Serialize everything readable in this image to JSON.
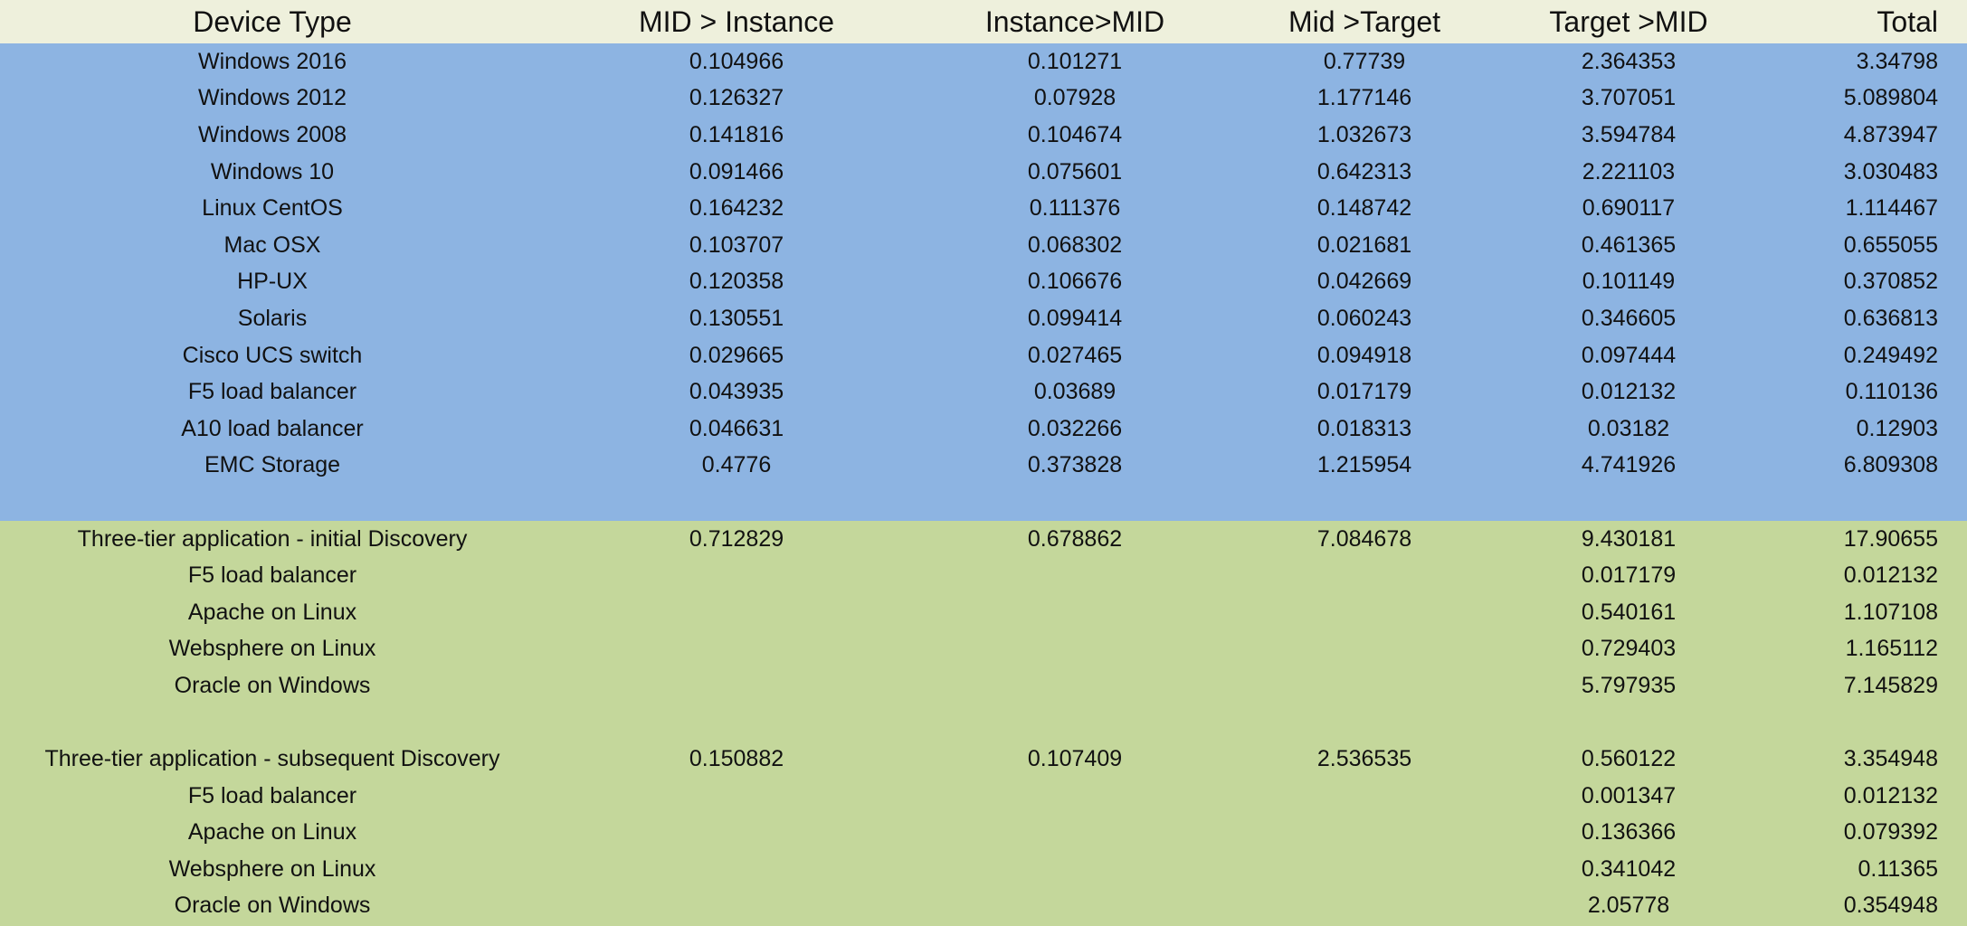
{
  "table": {
    "header": [
      "Device Type",
      "MID > Instance",
      "Instance>MID",
      "Mid >Target",
      "Target >MID",
      "Total"
    ],
    "sections": [
      {
        "rows": [
          [
            "Windows 2016",
            "0.104966",
            "0.101271",
            "0.77739",
            "2.364353",
            "3.34798"
          ],
          [
            "Windows 2012",
            "0.126327",
            "0.07928",
            "1.177146",
            "3.707051",
            "5.089804"
          ],
          [
            "Windows 2008",
            "0.141816",
            "0.104674",
            "1.032673",
            "3.594784",
            "4.873947"
          ],
          [
            "Windows 10",
            "0.091466",
            "0.075601",
            "0.642313",
            "2.221103",
            "3.030483"
          ],
          [
            "Linux CentOS",
            "0.164232",
            "0.111376",
            "0.148742",
            "0.690117",
            "1.114467"
          ],
          [
            "Mac OSX",
            "0.103707",
            "0.068302",
            "0.021681",
            "0.461365",
            "0.655055"
          ],
          [
            "HP-UX",
            "0.120358",
            "0.106676",
            "0.042669",
            "0.101149",
            "0.370852"
          ],
          [
            "Solaris",
            "0.130551",
            "0.099414",
            "0.060243",
            "0.346605",
            "0.636813"
          ],
          [
            "Cisco UCS switch",
            "0.029665",
            "0.027465",
            "0.094918",
            "0.097444",
            "0.249492"
          ],
          [
            "F5 load balancer",
            "0.043935",
            "0.03689",
            "0.017179",
            "0.012132",
            "0.110136"
          ],
          [
            "A10 load balancer",
            "0.046631",
            "0.032266",
            "0.018313",
            "0.03182",
            "0.12903"
          ],
          [
            "EMC Storage",
            "0.4776",
            "0.373828",
            "1.215954",
            "4.741926",
            "6.809308"
          ]
        ]
      },
      {
        "rows": [
          [
            "Three-tier application - initial Discovery",
            "0.712829",
            "0.678862",
            "7.084678",
            "9.430181",
            "17.90655"
          ],
          [
            "F5 load balancer",
            null,
            null,
            null,
            "0.017179",
            "0.012132"
          ],
          [
            "Apache on Linux",
            null,
            null,
            null,
            "0.540161",
            "1.107108"
          ],
          [
            "Websphere on Linux",
            null,
            null,
            null,
            "0.729403",
            "1.165112"
          ],
          [
            "Oracle on Windows",
            null,
            null,
            null,
            "5.797935",
            "7.145829"
          ]
        ]
      },
      {
        "rows": [
          [
            "Three-tier application - subsequent Discovery",
            "0.150882",
            "0.107409",
            "2.536535",
            "0.560122",
            "3.354948"
          ],
          [
            "F5 load balancer",
            null,
            null,
            null,
            "0.001347",
            "0.012132"
          ],
          [
            "Apache on Linux",
            null,
            null,
            null,
            "0.136366",
            "0.079392"
          ],
          [
            "Websphere on Linux",
            null,
            null,
            null,
            "0.341042",
            "0.11365"
          ],
          [
            "Oracle on Windows",
            null,
            null,
            null,
            "2.05778",
            "0.354948"
          ]
        ]
      }
    ]
  }
}
